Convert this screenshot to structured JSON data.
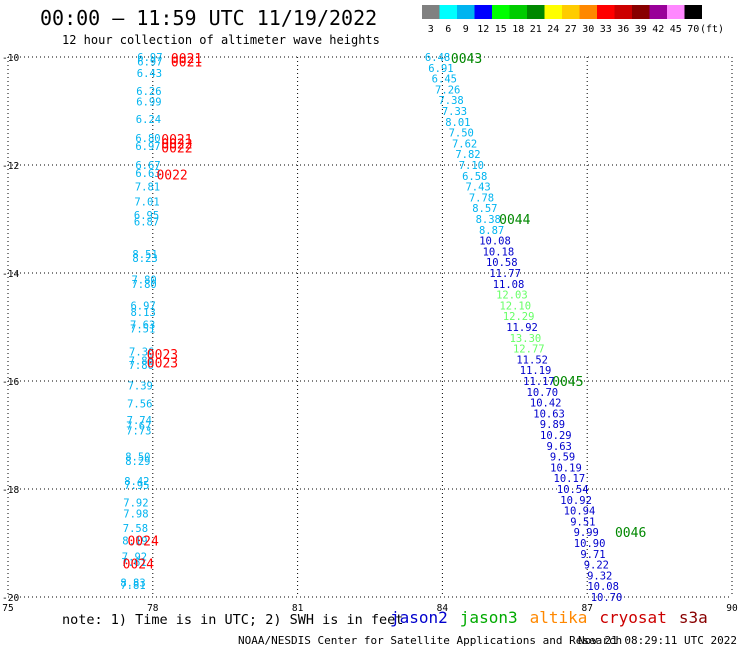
{
  "header": {
    "title": "00:00 – 11:59 UTC 11/19/2022",
    "subtitle": "12 hour collection of altimeter wave heights"
  },
  "colorbar": {
    "bins": [
      {
        "label": "3",
        "color": "#808080"
      },
      {
        "label": "6",
        "color": "#00ffff"
      },
      {
        "label": "9",
        "color": "#00b4f0"
      },
      {
        "label": "12",
        "color": "#0000ff"
      },
      {
        "label": "15",
        "color": "#00ff00"
      },
      {
        "label": "18",
        "color": "#00cc00"
      },
      {
        "label": "21",
        "color": "#008800"
      },
      {
        "label": "24",
        "color": "#ffff00"
      },
      {
        "label": "27",
        "color": "#ffcc00"
      },
      {
        "label": "30",
        "color": "#ff8800"
      },
      {
        "label": "33",
        "color": "#ff0000"
      },
      {
        "label": "36",
        "color": "#cc0000"
      },
      {
        "label": "39",
        "color": "#880000"
      },
      {
        "label": "42",
        "color": "#990099"
      },
      {
        "label": "45",
        "color": "#ff88ff"
      },
      {
        "label": "70",
        "color": "#000000"
      }
    ],
    "unit": "(ft)"
  },
  "map": {
    "lon_range": [
      75,
      90
    ],
    "lat_range": [
      -20,
      -10
    ],
    "x_ticks": [
      "75",
      "78",
      "81",
      "84",
      "87",
      "90"
    ],
    "y_ticks": [
      "-10",
      "-12",
      "-14",
      "-16",
      "-18",
      "-20"
    ],
    "track_colors": {
      "altika": "#00b4f0",
      "jason3": "#00ff00",
      "saral": "#0000cc"
    },
    "pass_colors": {
      "red": "#ff0000",
      "green": "#008800"
    },
    "tracks": [
      {
        "track_id": "west_track",
        "points": [
          {
            "lat": -10.0,
            "lon": 77.94,
            "value": "6.97",
            "color": "#00b4f0"
          },
          {
            "lat": -10.08,
            "lon": 77.94,
            "value": "6.97",
            "color": "#00b4f0"
          },
          {
            "lat": -10.3,
            "lon": 77.93,
            "value": "6.43",
            "color": "#00b4f0"
          },
          {
            "lat": -10.63,
            "lon": 77.92,
            "value": "6.26",
            "color": "#00b4f0"
          },
          {
            "lat": -10.82,
            "lon": 77.92,
            "value": "6.99",
            "color": "#00b4f0"
          },
          {
            "lat": -11.15,
            "lon": 77.91,
            "value": "6.24",
            "color": "#00b4f0"
          },
          {
            "lat": -11.5,
            "lon": 77.9,
            "value": "6.80",
            "color": "#00b4f0"
          },
          {
            "lat": -11.65,
            "lon": 77.9,
            "value": "6.97",
            "color": "#00b4f0"
          },
          {
            "lat": -12.0,
            "lon": 77.9,
            "value": "6.67",
            "color": "#00b4f0"
          },
          {
            "lat": -12.15,
            "lon": 77.9,
            "value": "6.63",
            "color": "#00b4f0"
          },
          {
            "lat": -12.4,
            "lon": 77.89,
            "value": "7.81",
            "color": "#00b4f0"
          },
          {
            "lat": -12.68,
            "lon": 77.88,
            "value": "7.01",
            "color": "#00b4f0"
          },
          {
            "lat": -12.93,
            "lon": 77.87,
            "value": "6.95",
            "color": "#00b4f0"
          },
          {
            "lat": -13.05,
            "lon": 77.87,
            "value": "6.87",
            "color": "#00b4f0"
          },
          {
            "lat": -13.65,
            "lon": 77.84,
            "value": "8.51",
            "color": "#00b4f0"
          },
          {
            "lat": -13.72,
            "lon": 77.84,
            "value": "8.23",
            "color": "#00b4f0"
          },
          {
            "lat": -14.12,
            "lon": 77.82,
            "value": "7.80",
            "color": "#00b4f0"
          },
          {
            "lat": -14.2,
            "lon": 77.82,
            "value": "7.80",
            "color": "#00b4f0"
          },
          {
            "lat": -14.6,
            "lon": 77.8,
            "value": "6.97",
            "color": "#00b4f0"
          },
          {
            "lat": -14.72,
            "lon": 77.8,
            "value": "8.13",
            "color": "#00b4f0"
          },
          {
            "lat": -14.95,
            "lon": 77.79,
            "value": "7.63",
            "color": "#00b4f0"
          },
          {
            "lat": -15.03,
            "lon": 77.79,
            "value": "7.51",
            "color": "#00b4f0"
          },
          {
            "lat": -15.45,
            "lon": 77.77,
            "value": "7.36",
            "color": "#00b4f0"
          },
          {
            "lat": -15.62,
            "lon": 77.76,
            "value": "7.86",
            "color": "#00b4f0"
          },
          {
            "lat": -15.7,
            "lon": 77.76,
            "value": "7.86",
            "color": "#00b4f0"
          },
          {
            "lat": -16.08,
            "lon": 77.74,
            "value": "7.39",
            "color": "#00b4f0"
          },
          {
            "lat": -16.42,
            "lon": 77.73,
            "value": "7.56",
            "color": "#00b4f0"
          },
          {
            "lat": -16.72,
            "lon": 77.72,
            "value": "7.74",
            "color": "#00b4f0"
          },
          {
            "lat": -16.82,
            "lon": 77.71,
            "value": "7.67",
            "color": "#00b4f0"
          },
          {
            "lat": -16.92,
            "lon": 77.71,
            "value": "7.73",
            "color": "#00b4f0"
          },
          {
            "lat": -17.4,
            "lon": 77.69,
            "value": "8.50",
            "color": "#00b4f0"
          },
          {
            "lat": -17.48,
            "lon": 77.69,
            "value": "8.29",
            "color": "#00b4f0"
          },
          {
            "lat": -17.85,
            "lon": 77.67,
            "value": "8.42",
            "color": "#00b4f0"
          },
          {
            "lat": -17.93,
            "lon": 77.67,
            "value": "7.95",
            "color": "#00b4f0"
          },
          {
            "lat": -18.25,
            "lon": 77.65,
            "value": "7.92",
            "color": "#00b4f0"
          },
          {
            "lat": -18.45,
            "lon": 77.65,
            "value": "7.98",
            "color": "#00b4f0"
          },
          {
            "lat": -18.72,
            "lon": 77.64,
            "value": "7.58",
            "color": "#00b4f0"
          },
          {
            "lat": -18.95,
            "lon": 77.63,
            "value": "8.19",
            "color": "#00b4f0"
          },
          {
            "lat": -19.25,
            "lon": 77.62,
            "value": "7.92",
            "color": "#00b4f0"
          },
          {
            "lat": -19.35,
            "lon": 77.61,
            "value": "7.61",
            "color": "#00b4f0"
          },
          {
            "lat": -19.73,
            "lon": 77.59,
            "value": "8.83",
            "color": "#00b4f0"
          },
          {
            "lat": -19.78,
            "lon": 77.59,
            "value": "7.81",
            "color": "#00b4f0"
          }
        ]
      },
      {
        "track_id": "east_track",
        "points": [
          {
            "lat": -10.0,
            "lon": 83.9,
            "value": "6.48",
            "color": "#00b4f0"
          },
          {
            "lat": -10.2,
            "lon": 83.97,
            "value": "6.91",
            "color": "#00b4f0"
          },
          {
            "lat": -10.4,
            "lon": 84.04,
            "value": "6.45",
            "color": "#00b4f0"
          },
          {
            "lat": -10.6,
            "lon": 84.11,
            "value": "7.26",
            "color": "#00b4f0"
          },
          {
            "lat": -10.8,
            "lon": 84.18,
            "value": "7.38",
            "color": "#00b4f0"
          },
          {
            "lat": -11.0,
            "lon": 84.25,
            "value": "7.33",
            "color": "#00b4f0"
          },
          {
            "lat": -11.2,
            "lon": 84.32,
            "value": "8.01",
            "color": "#00b4f0"
          },
          {
            "lat": -11.4,
            "lon": 84.39,
            "value": "7.50",
            "color": "#00b4f0"
          },
          {
            "lat": -11.6,
            "lon": 84.46,
            "value": "7.62",
            "color": "#00b4f0"
          },
          {
            "lat": -11.8,
            "lon": 84.53,
            "value": "7.82",
            "color": "#00b4f0"
          },
          {
            "lat": -12.0,
            "lon": 84.6,
            "value": "7.10",
            "color": "#00b4f0"
          },
          {
            "lat": -12.2,
            "lon": 84.67,
            "value": "6.58",
            "color": "#00b4f0"
          },
          {
            "lat": -12.4,
            "lon": 84.74,
            "value": "7.43",
            "color": "#00b4f0"
          },
          {
            "lat": -12.6,
            "lon": 84.81,
            "value": "7.78",
            "color": "#00b4f0"
          },
          {
            "lat": -12.8,
            "lon": 84.88,
            "value": "8.57",
            "color": "#00b4f0"
          },
          {
            "lat": -13.0,
            "lon": 84.95,
            "value": "8.38",
            "color": "#00b4f0"
          },
          {
            "lat": -13.2,
            "lon": 85.02,
            "value": "8.87",
            "color": "#00b4f0"
          },
          {
            "lat": -13.4,
            "lon": 85.09,
            "value": "10.08",
            "color": "#0000cc"
          },
          {
            "lat": -13.6,
            "lon": 85.16,
            "value": "10.18",
            "color": "#0000cc"
          },
          {
            "lat": -13.8,
            "lon": 85.23,
            "value": "10.58",
            "color": "#0000cc"
          },
          {
            "lat": -14.0,
            "lon": 85.3,
            "value": "11.77",
            "color": "#0000cc"
          },
          {
            "lat": -14.2,
            "lon": 85.37,
            "value": "11.08",
            "color": "#0000cc"
          },
          {
            "lat": -14.4,
            "lon": 85.44,
            "value": "12.03",
            "color": "#66ff66"
          },
          {
            "lat": -14.6,
            "lon": 85.51,
            "value": "12.10",
            "color": "#66ff66"
          },
          {
            "lat": -14.8,
            "lon": 85.58,
            "value": "12.29",
            "color": "#66ff66"
          },
          {
            "lat": -15.0,
            "lon": 85.65,
            "value": "11.92",
            "color": "#0000cc"
          },
          {
            "lat": -15.2,
            "lon": 85.72,
            "value": "13.30",
            "color": "#66ff66"
          },
          {
            "lat": -15.4,
            "lon": 85.79,
            "value": "12.77",
            "color": "#66ff66"
          },
          {
            "lat": -15.6,
            "lon": 85.86,
            "value": "11.52",
            "color": "#0000cc"
          },
          {
            "lat": -15.8,
            "lon": 85.93,
            "value": "11.19",
            "color": "#0000cc"
          },
          {
            "lat": -16.0,
            "lon": 86.0,
            "value": "11.17",
            "color": "#0000cc"
          },
          {
            "lat": -16.2,
            "lon": 86.07,
            "value": "10.70",
            "color": "#0000cc"
          },
          {
            "lat": -16.4,
            "lon": 86.14,
            "value": "10.42",
            "color": "#0000cc"
          },
          {
            "lat": -16.6,
            "lon": 86.21,
            "value": "10.63",
            "color": "#0000cc"
          },
          {
            "lat": -16.8,
            "lon": 86.28,
            "value": "9.89",
            "color": "#0000cc"
          },
          {
            "lat": -17.0,
            "lon": 86.35,
            "value": "10.29",
            "color": "#0000cc"
          },
          {
            "lat": -17.2,
            "lon": 86.42,
            "value": "9.63",
            "color": "#0000cc"
          },
          {
            "lat": -17.4,
            "lon": 86.49,
            "value": "9.59",
            "color": "#0000cc"
          },
          {
            "lat": -17.6,
            "lon": 86.56,
            "value": "10.19",
            "color": "#0000cc"
          },
          {
            "lat": -17.8,
            "lon": 86.63,
            "value": "10.17",
            "color": "#0000cc"
          },
          {
            "lat": -18.0,
            "lon": 86.7,
            "value": "10.54",
            "color": "#0000cc"
          },
          {
            "lat": -18.2,
            "lon": 86.77,
            "value": "10.92",
            "color": "#0000cc"
          },
          {
            "lat": -18.4,
            "lon": 86.84,
            "value": "10.94",
            "color": "#0000cc"
          },
          {
            "lat": -18.6,
            "lon": 86.91,
            "value": "9.51",
            "color": "#0000cc"
          },
          {
            "lat": -18.8,
            "lon": 86.98,
            "value": "9.99",
            "color": "#0000cc"
          },
          {
            "lat": -19.0,
            "lon": 87.05,
            "value": "10.90",
            "color": "#0000cc"
          },
          {
            "lat": -19.2,
            "lon": 87.12,
            "value": "9.71",
            "color": "#0000cc"
          },
          {
            "lat": -19.4,
            "lon": 87.19,
            "value": "9.22",
            "color": "#0000cc"
          },
          {
            "lat": -19.6,
            "lon": 87.26,
            "value": "9.32",
            "color": "#0000cc"
          },
          {
            "lat": -19.8,
            "lon": 87.33,
            "value": "10.08",
            "color": "#0000cc"
          },
          {
            "lat": -20.0,
            "lon": 87.4,
            "value": "10.70",
            "color": "#0000cc"
          }
        ]
      }
    ],
    "pass_labels": [
      {
        "lat": -10.02,
        "lon": 78.7,
        "value": "0021",
        "color": "#ff0000"
      },
      {
        "lat": -10.08,
        "lon": 78.7,
        "value": "0021",
        "color": "#ff0000"
      },
      {
        "lat": -11.52,
        "lon": 78.5,
        "value": "0021",
        "color": "#ff0000"
      },
      {
        "lat": -11.6,
        "lon": 78.5,
        "value": "0022",
        "color": "#ff0000"
      },
      {
        "lat": -11.68,
        "lon": 78.5,
        "value": "0022",
        "color": "#ff0000"
      },
      {
        "lat": -12.18,
        "lon": 78.4,
        "value": "0022",
        "color": "#ff0000"
      },
      {
        "lat": -15.5,
        "lon": 78.2,
        "value": "0023",
        "color": "#ff0000"
      },
      {
        "lat": -15.66,
        "lon": 78.2,
        "value": "0023",
        "color": "#ff0000"
      },
      {
        "lat": -18.95,
        "lon": 77.8,
        "value": "0024",
        "color": "#ff0000"
      },
      {
        "lat": -19.38,
        "lon": 77.7,
        "value": "0024",
        "color": "#ff0000"
      },
      {
        "lat": -10.02,
        "lon": 84.5,
        "value": "0043",
        "color": "#008800"
      },
      {
        "lat": -13.0,
        "lon": 85.5,
        "value": "0044",
        "color": "#008800"
      },
      {
        "lat": -16.0,
        "lon": 86.6,
        "value": "0045",
        "color": "#008800"
      },
      {
        "lat": -18.8,
        "lon": 87.9,
        "value": "0046",
        "color": "#008800"
      }
    ]
  },
  "footer": {
    "note": "note: 1) Time is in UTC; 2) SWH is in feet",
    "legend": [
      {
        "name": "jason2",
        "color": "#0000cc"
      },
      {
        "name": "jason3",
        "color": "#00aa00"
      },
      {
        "name": "altika",
        "color": "#ff8800"
      },
      {
        "name": "cryosat",
        "color": "#cc0000"
      },
      {
        "name": "s3a",
        "color": "#880000"
      }
    ],
    "credit": "NOAA/NESDIS Center for Satellite Applications and Research",
    "timestamp": "Nov 21 08:29:11 UTC 2022"
  }
}
